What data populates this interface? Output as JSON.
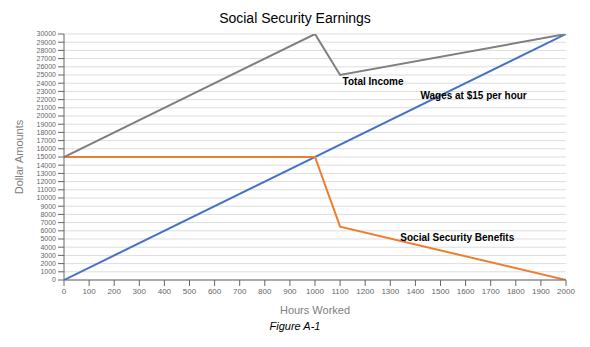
{
  "chart_data": {
    "type": "line",
    "title": "Social Security Earnings",
    "xlabel": "Hours Worked",
    "ylabel": "Dollar Amounts",
    "caption": "Figure A-1",
    "xlim": [
      0,
      2000
    ],
    "ylim": [
      0,
      30000
    ],
    "xticks": [
      0,
      100,
      200,
      300,
      400,
      500,
      600,
      700,
      800,
      900,
      1000,
      1100,
      1200,
      1300,
      1400,
      1500,
      1600,
      1700,
      1800,
      1900,
      2000
    ],
    "yticks": [
      0,
      1000,
      2000,
      3000,
      4000,
      5000,
      6000,
      7000,
      8000,
      9000,
      10000,
      11000,
      12000,
      13000,
      14000,
      15000,
      16000,
      17000,
      18000,
      19000,
      20000,
      21000,
      22000,
      23000,
      24000,
      25000,
      26000,
      27000,
      28000,
      29000,
      30000
    ],
    "grid": true,
    "series": [
      {
        "name": "Wages at $15 per hour",
        "color": "#4472C4",
        "x": [
          0,
          2000
        ],
        "values": [
          0,
          30000
        ]
      },
      {
        "name": "Social Security Benefits",
        "color": "#ED7D31",
        "x": [
          0,
          1000,
          1100,
          2000
        ],
        "values": [
          15000,
          15000,
          6500,
          0
        ]
      },
      {
        "name": "Total Income",
        "color": "#7F7F7F",
        "x": [
          0,
          1000,
          1100,
          2000
        ],
        "values": [
          15000,
          30000,
          25000,
          30000
        ]
      }
    ],
    "annotations": [
      {
        "text": "Wages at $15 per hour",
        "x": 1420,
        "y": 22500
      },
      {
        "text": "Social Security Benefits",
        "x": 1340,
        "y": 5200
      },
      {
        "text": "Total Income",
        "x": 1110,
        "y": 24200
      }
    ]
  }
}
